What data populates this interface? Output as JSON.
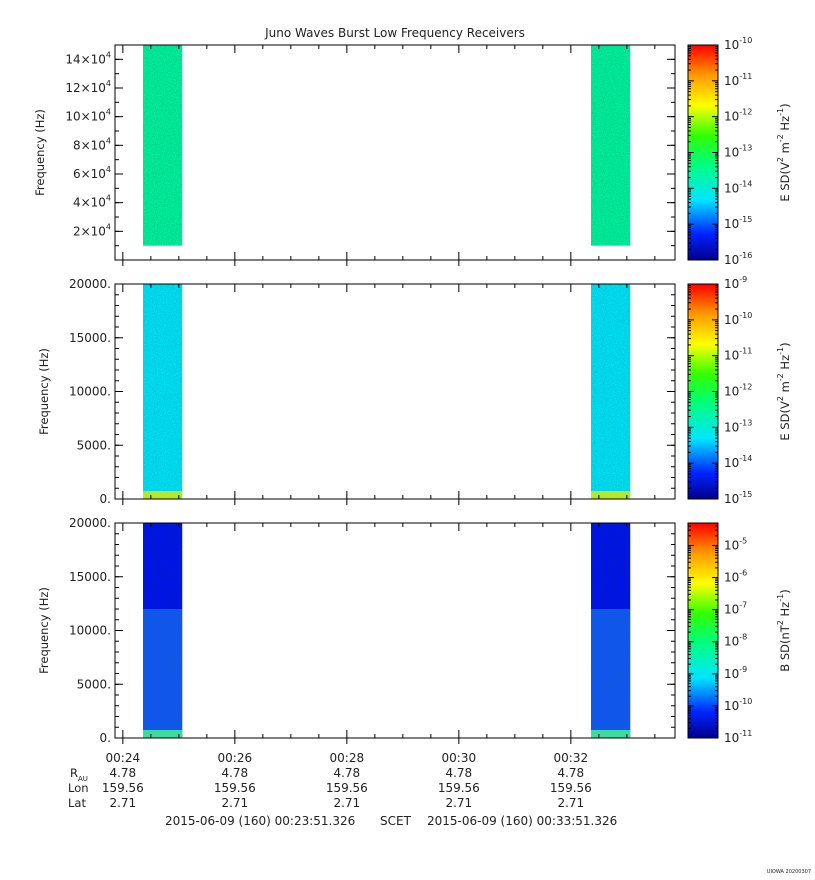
{
  "title": "Juno Waves Burst Low Frequency Receivers",
  "footer": {
    "start": "2015-06-09 (160) 00:23:51.326",
    "frame": "SCET",
    "end": "2015-06-09 (160) 00:33:51.326",
    "stamp": "UIOWA 20200307"
  },
  "ephemeris": {
    "row_labels": [
      "R",
      "Lon",
      "Lat"
    ],
    "r_subscript": "AU",
    "columns": [
      {
        "time": "00:24",
        "R": "4.78",
        "Lon": "159.56",
        "Lat": "2.71"
      },
      {
        "time": "00:26",
        "R": "4.78",
        "Lon": "159.56",
        "Lat": "2.71"
      },
      {
        "time": "00:28",
        "R": "4.78",
        "Lon": "159.56",
        "Lat": "2.71"
      },
      {
        "time": "00:30",
        "R": "4.78",
        "Lon": "159.56",
        "Lat": "2.71"
      },
      {
        "time": "00:32",
        "R": "4.78",
        "Lon": "159.56",
        "Lat": "2.71"
      }
    ]
  },
  "chart_data": [
    {
      "type": "heatmap",
      "ylabel": "Frequency (Hz)",
      "ylim": [
        0,
        150000
      ],
      "yticks": [
        {
          "value": 20000,
          "mant": "2",
          "exp": "4"
        },
        {
          "value": 40000,
          "mant": "4",
          "exp": "4"
        },
        {
          "value": 60000,
          "mant": "6",
          "exp": "4"
        },
        {
          "value": 80000,
          "mant": "8",
          "exp": "4"
        },
        {
          "value": 100000,
          "mant": "10",
          "exp": "4"
        },
        {
          "value": 120000,
          "mant": "12",
          "exp": "4"
        },
        {
          "value": 140000,
          "mant": "14",
          "exp": "4"
        }
      ],
      "xlim_minutes": [
        23.86,
        33.86
      ],
      "xticks": [
        {
          "value": 24,
          "label": "00:24"
        },
        {
          "value": 26,
          "label": "00:26"
        },
        {
          "value": 28,
          "label": "00:28"
        },
        {
          "value": 30,
          "label": "00:30"
        },
        {
          "value": 32,
          "label": "00:32"
        }
      ],
      "colorbar": {
        "label_base": "E SD(V",
        "label_pieces": [
          "2",
          " m",
          "-2",
          " Hz",
          "-1",
          ")"
        ],
        "log_range": [
          -16,
          -10
        ],
        "ticks": [
          "-16",
          "-15",
          "-14",
          "-13",
          "-12",
          "-11",
          "-10"
        ]
      },
      "blocks": [
        {
          "t_start": 24.36,
          "t_end": 25.06,
          "f_min": 10000,
          "f_max": 150000,
          "level": -13.6
        },
        {
          "t_start": 32.36,
          "t_end": 33.06,
          "f_min": 10000,
          "f_max": 150000,
          "level": -13.6
        }
      ]
    },
    {
      "type": "heatmap",
      "ylabel": "Frequency (Hz)",
      "ylim": [
        0,
        20000
      ],
      "yticks": [
        {
          "value": 0,
          "label": "0."
        },
        {
          "value": 5000,
          "label": "5000."
        },
        {
          "value": 10000,
          "label": "10000."
        },
        {
          "value": 15000,
          "label": "15000."
        },
        {
          "value": 20000,
          "label": "20000."
        }
      ],
      "xlim_minutes": [
        23.86,
        33.86
      ],
      "xticks": [
        {
          "value": 24,
          "label": "00:24"
        },
        {
          "value": 26,
          "label": "00:26"
        },
        {
          "value": 28,
          "label": "00:28"
        },
        {
          "value": 30,
          "label": "00:30"
        },
        {
          "value": 32,
          "label": "00:32"
        }
      ],
      "colorbar": {
        "label_base": "E SD(V",
        "label_pieces": [
          "2",
          " m",
          "-2",
          " Hz",
          "-1",
          ")"
        ],
        "log_range": [
          -15,
          -9
        ],
        "ticks": [
          "-15",
          "-14",
          "-13",
          "-12",
          "-11",
          "-10",
          "-9"
        ]
      },
      "blocks": [
        {
          "t_start": 24.36,
          "t_end": 25.06,
          "f_min": 0,
          "f_max": 20000,
          "level": -13.3
        },
        {
          "t_start": 32.36,
          "t_end": 33.06,
          "f_min": 0,
          "f_max": 20000,
          "level": -13.3
        }
      ]
    },
    {
      "type": "heatmap",
      "ylabel": "Frequency (Hz)",
      "ylim": [
        0,
        20000
      ],
      "yticks": [
        {
          "value": 0,
          "label": "0."
        },
        {
          "value": 5000,
          "label": "5000."
        },
        {
          "value": 10000,
          "label": "10000."
        },
        {
          "value": 15000,
          "label": "15000."
        },
        {
          "value": 20000,
          "label": "20000."
        }
      ],
      "xlim_minutes": [
        23.86,
        33.86
      ],
      "xticks": [
        {
          "value": 24,
          "label": "00:24"
        },
        {
          "value": 26,
          "label": "00:26"
        },
        {
          "value": 28,
          "label": "00:28"
        },
        {
          "value": 30,
          "label": "00:30"
        },
        {
          "value": 32,
          "label": "00:32"
        }
      ],
      "colorbar": {
        "label_base": "B SD(nT",
        "label_pieces": [
          "2",
          " Hz",
          "-1",
          ")"
        ],
        "log_range": [
          -11,
          -4.3
        ],
        "ticks": [
          "-11",
          "-10",
          "-9",
          "-8",
          "-7",
          "-6",
          "-5"
        ]
      },
      "blocks": [
        {
          "t_start": 24.36,
          "t_end": 25.06,
          "f_min": 0,
          "f_max": 20000,
          "level": -10.3
        },
        {
          "t_start": 32.36,
          "t_end": 33.06,
          "f_min": 0,
          "f_max": 20000,
          "level": -10.3
        }
      ]
    }
  ]
}
